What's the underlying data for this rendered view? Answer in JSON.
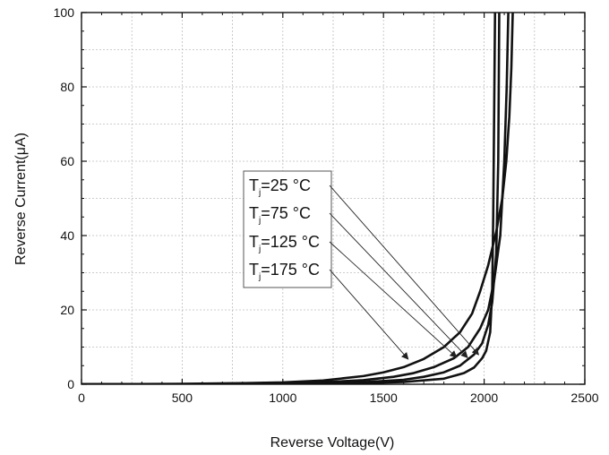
{
  "chart_data": {
    "type": "line",
    "xlabel": "Reverse Voltage(V)",
    "ylabel": "Reverse Current(μA)",
    "xlim": [
      0,
      2500
    ],
    "ylim": [
      0,
      100
    ],
    "xticks": [
      "0",
      "500",
      "1000",
      "1500",
      "2000",
      "2500"
    ],
    "yticks": [
      "0",
      "20",
      "40",
      "60",
      "80",
      "100"
    ],
    "grid": true,
    "legend_position": "center",
    "series": [
      {
        "name": "Tj=25 °C",
        "label_main": "T",
        "label_sub": "j",
        "label_rest": "=25 °C",
        "points": [
          [
            0,
            0
          ],
          [
            500,
            0.02
          ],
          [
            1000,
            0.08
          ],
          [
            1200,
            0.15
          ],
          [
            1400,
            0.3
          ],
          [
            1600,
            0.6
          ],
          [
            1800,
            1.5
          ],
          [
            1900,
            3
          ],
          [
            1950,
            4.5
          ],
          [
            1990,
            7
          ],
          [
            2010,
            9
          ],
          [
            2030,
            14
          ],
          [
            2040,
            25
          ],
          [
            2045,
            45
          ],
          [
            2050,
            75
          ],
          [
            2054,
            100
          ]
        ]
      },
      {
        "name": "Tj=75 °C",
        "label_main": "T",
        "label_sub": "j",
        "label_rest": "=75 °C",
        "points": [
          [
            0,
            0
          ],
          [
            500,
            0.03
          ],
          [
            1000,
            0.12
          ],
          [
            1200,
            0.25
          ],
          [
            1400,
            0.55
          ],
          [
            1600,
            1.2
          ],
          [
            1700,
            2
          ],
          [
            1800,
            3.2
          ],
          [
            1880,
            5
          ],
          [
            1950,
            8
          ],
          [
            1990,
            11
          ],
          [
            2020,
            16
          ],
          [
            2040,
            22
          ],
          [
            2060,
            35
          ],
          [
            2070,
            60
          ],
          [
            2075,
            100
          ]
        ]
      },
      {
        "name": "Tj=125 °C",
        "label_main": "T",
        "label_sub": "j",
        "label_rest": "=125 °C",
        "points": [
          [
            0,
            0
          ],
          [
            500,
            0.06
          ],
          [
            1000,
            0.25
          ],
          [
            1200,
            0.55
          ],
          [
            1400,
            1.1
          ],
          [
            1550,
            2
          ],
          [
            1650,
            3
          ],
          [
            1750,
            4.6
          ],
          [
            1850,
            7
          ],
          [
            1920,
            10
          ],
          [
            1980,
            15
          ],
          [
            2020,
            20
          ],
          [
            2050,
            28
          ],
          [
            2080,
            40
          ],
          [
            2100,
            60
          ],
          [
            2112,
            80
          ],
          [
            2120,
            100
          ]
        ]
      },
      {
        "name": "Tj=175 °C",
        "label_main": "T",
        "label_sub": "j",
        "label_rest": "=175 °C",
        "points": [
          [
            0,
            0
          ],
          [
            500,
            0.1
          ],
          [
            800,
            0.3
          ],
          [
            1000,
            0.5
          ],
          [
            1200,
            1.0
          ],
          [
            1400,
            2.2
          ],
          [
            1500,
            3.2
          ],
          [
            1600,
            4.6
          ],
          [
            1700,
            6.8
          ],
          [
            1800,
            10
          ],
          [
            1880,
            14
          ],
          [
            1940,
            19
          ],
          [
            1980,
            25
          ],
          [
            2020,
            32
          ],
          [
            2060,
            41
          ],
          [
            2090,
            50
          ],
          [
            2110,
            60
          ],
          [
            2125,
            72
          ],
          [
            2135,
            85
          ],
          [
            2142,
            100
          ]
        ]
      }
    ]
  }
}
